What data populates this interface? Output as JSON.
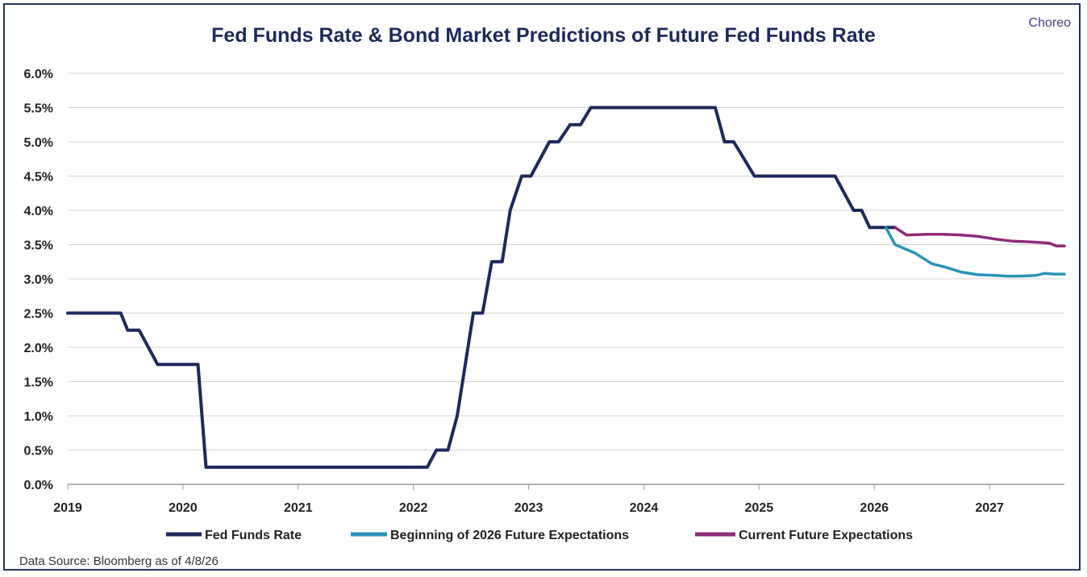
{
  "brand": "Choreo",
  "source_note": "Data Source: Bloomberg as of 4/8/26",
  "chart_data": {
    "type": "line",
    "title": "Fed Funds Rate & Bond Market Predictions of Future Fed Funds Rate",
    "xlabel": "",
    "ylabel": "",
    "xlim": [
      2019.0,
      2027.65
    ],
    "ylim": [
      0,
      6.0
    ],
    "y_ticks": [
      "0.0%",
      "0.5%",
      "1.0%",
      "1.5%",
      "2.0%",
      "2.5%",
      "3.0%",
      "3.5%",
      "4.0%",
      "4.5%",
      "5.0%",
      "5.5%",
      "6.0%"
    ],
    "y_tick_values": [
      0,
      0.5,
      1.0,
      1.5,
      2.0,
      2.5,
      3.0,
      3.5,
      4.0,
      4.5,
      5.0,
      5.5,
      6.0
    ],
    "x_ticks": [
      "2019",
      "2020",
      "2021",
      "2022",
      "2023",
      "2024",
      "2025",
      "2026",
      "2027"
    ],
    "x_tick_values": [
      2019,
      2020,
      2021,
      2022,
      2023,
      2024,
      2025,
      2026,
      2027
    ],
    "grid": true,
    "legend": "bottom",
    "series": [
      {
        "name": "Fed Funds Rate",
        "color": "#1c2a5c",
        "points": [
          [
            2019.0,
            2.5
          ],
          [
            2019.46,
            2.5
          ],
          [
            2019.52,
            2.25
          ],
          [
            2019.62,
            2.25
          ],
          [
            2019.78,
            1.75
          ],
          [
            2020.13,
            1.75
          ],
          [
            2020.2,
            0.25
          ],
          [
            2022.12,
            0.25
          ],
          [
            2022.2,
            0.5
          ],
          [
            2022.3,
            0.5
          ],
          [
            2022.38,
            1.0
          ],
          [
            2022.52,
            2.5
          ],
          [
            2022.6,
            2.5
          ],
          [
            2022.68,
            3.25
          ],
          [
            2022.77,
            3.25
          ],
          [
            2022.84,
            4.0
          ],
          [
            2022.94,
            4.5
          ],
          [
            2023.02,
            4.5
          ],
          [
            2023.18,
            5.0
          ],
          [
            2023.26,
            5.0
          ],
          [
            2023.36,
            5.25
          ],
          [
            2023.45,
            5.25
          ],
          [
            2023.54,
            5.5
          ],
          [
            2024.62,
            5.5
          ],
          [
            2024.7,
            5.0
          ],
          [
            2024.78,
            5.0
          ],
          [
            2024.96,
            4.5
          ],
          [
            2025.66,
            4.5
          ],
          [
            2025.82,
            4.0
          ],
          [
            2025.89,
            4.0
          ],
          [
            2025.96,
            3.75
          ],
          [
            2026.18,
            3.75
          ]
        ]
      },
      {
        "name": "Beginning of 2026 Future Expectations",
        "color": "#2a93b8",
        "points": [
          [
            2026.1,
            3.75
          ],
          [
            2026.18,
            3.5
          ],
          [
            2026.35,
            3.38
          ],
          [
            2026.5,
            3.22
          ],
          [
            2026.62,
            3.17
          ],
          [
            2026.75,
            3.1
          ],
          [
            2026.9,
            3.06
          ],
          [
            2027.05,
            3.05
          ],
          [
            2027.15,
            3.04
          ],
          [
            2027.28,
            3.04
          ],
          [
            2027.4,
            3.05
          ],
          [
            2027.48,
            3.08
          ],
          [
            2027.56,
            3.07
          ],
          [
            2027.65,
            3.07
          ]
        ]
      },
      {
        "name": "Current Future Expectations",
        "color": "#8c2c79",
        "points": [
          [
            2026.18,
            3.75
          ],
          [
            2026.28,
            3.64
          ],
          [
            2026.45,
            3.65
          ],
          [
            2026.6,
            3.65
          ],
          [
            2026.75,
            3.64
          ],
          [
            2026.9,
            3.62
          ],
          [
            2027.05,
            3.58
          ],
          [
            2027.2,
            3.55
          ],
          [
            2027.35,
            3.54
          ],
          [
            2027.45,
            3.53
          ],
          [
            2027.52,
            3.52
          ],
          [
            2027.58,
            3.48
          ],
          [
            2027.65,
            3.48
          ]
        ]
      }
    ]
  }
}
